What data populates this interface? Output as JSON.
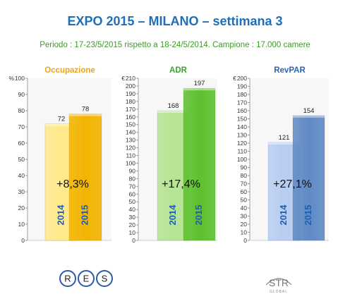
{
  "header": {
    "title": "EXPO 2015 – MILANO – settimana 3",
    "subtitle": "Periodo : 17-23/5/2015  rispetto a 18-24/5/2014.  Campione : 17.000 camere"
  },
  "chart_data": [
    {
      "type": "bar",
      "title": "Occupazione",
      "unit": "%",
      "categories": [
        "2014",
        "2015"
      ],
      "values": [
        72,
        78
      ],
      "ylim": [
        0,
        100
      ],
      "ytick_step": 10,
      "change_label": "+8,3%",
      "colors": [
        "#ffe98a",
        "#f3b400"
      ],
      "title_color": "#f0a21e"
    },
    {
      "type": "bar",
      "title": "ADR",
      "unit": "€",
      "categories": [
        "2014",
        "2015"
      ],
      "values": [
        168,
        197
      ],
      "ylim": [
        0,
        210
      ],
      "ytick_step": 10,
      "change_label": "+17,4%",
      "colors": [
        "#b6e394",
        "#5dc02e"
      ],
      "title_color": "#39a52a"
    },
    {
      "type": "bar",
      "title": "RevPAR",
      "unit": "€",
      "categories": [
        "2014",
        "2015"
      ],
      "values": [
        121,
        154
      ],
      "ylim": [
        0,
        200
      ],
      "ytick_step": 10,
      "change_label": "+27,1%",
      "colors": [
        "#b7cdf1",
        "#5f8ac4"
      ],
      "title_color": "#2a66b5"
    }
  ],
  "logos": {
    "res": [
      "R",
      "E",
      "S"
    ],
    "str": "STR",
    "str_sub": "GLOBAL"
  }
}
